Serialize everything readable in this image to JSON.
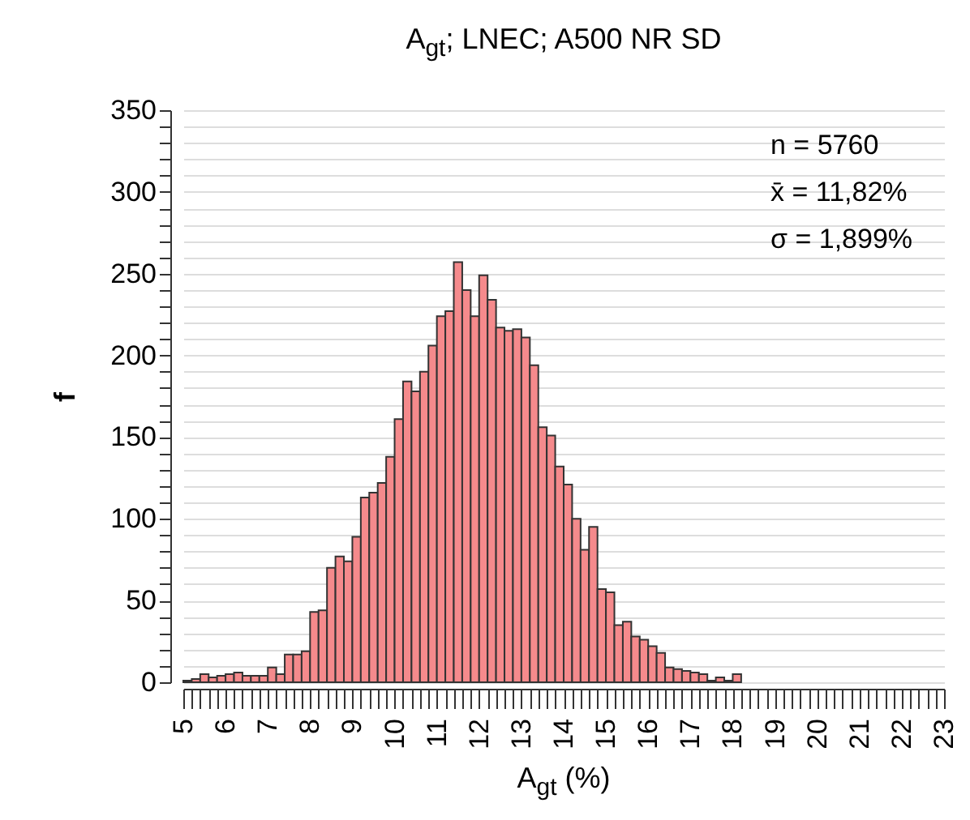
{
  "chart_data": {
    "type": "histogram",
    "title": "A$_{gt}$; LNEC; A500 NR SD",
    "xlabel": "A$_{gt}$ (%)",
    "ylabel": "f",
    "annotations": [
      "n = 5760",
      "x̄ = 11,82%",
      "σ = 1,899%"
    ],
    "color": "#f58a8c",
    "bins": [
      5.0,
      5.2,
      5.4,
      5.6,
      5.8,
      6.0,
      6.2,
      6.4,
      6.6,
      6.8,
      7.0,
      7.2,
      7.4,
      7.6,
      7.8,
      8.0,
      8.2,
      8.4,
      8.6,
      8.8,
      9.0,
      9.2,
      9.4,
      9.6,
      9.8,
      10.0,
      10.2,
      10.4,
      10.6,
      10.8,
      11.0,
      11.2,
      11.4,
      11.6,
      11.8,
      12.0,
      12.2,
      12.4,
      12.6,
      12.8,
      13.0,
      13.2,
      13.4,
      13.6,
      13.8,
      14.0,
      14.2,
      14.4,
      14.6,
      14.8,
      15.0,
      15.2,
      15.4,
      15.6,
      15.8,
      16.0,
      16.2,
      16.4,
      16.6,
      16.8,
      17.0,
      17.2,
      17.4,
      17.6,
      17.8,
      18.0,
      18.2
    ],
    "values": [
      1,
      2,
      5,
      3,
      4,
      5,
      6,
      4,
      4,
      4,
      9,
      5,
      17,
      17,
      19,
      43,
      44,
      70,
      77,
      74,
      89,
      113,
      116,
      122,
      138,
      161,
      184,
      178,
      190,
      206,
      224,
      227,
      257,
      240,
      224,
      249,
      234,
      217,
      215,
      216,
      211,
      194,
      156,
      151,
      132,
      121,
      100,
      81,
      95,
      57,
      55,
      35,
      37,
      28,
      26,
      22,
      18,
      9,
      8,
      7,
      6,
      5,
      1,
      3,
      1,
      5
    ],
    "xlim": [
      5,
      23
    ],
    "ylim": [
      0,
      350
    ],
    "xticks": [
      5,
      {
        "value": 5.2,
        "label": null
      },
      {
        "value": 5.4,
        "label": null
      },
      {
        "value": 5.6,
        "label": null
      },
      {
        "value": 5.8,
        "label": null
      },
      6,
      {
        "value": 6.2,
        "label": null
      },
      {
        "value": 6.4,
        "label": null
      },
      {
        "value": 6.6,
        "label": null
      },
      {
        "value": 6.8,
        "label": null
      },
      7,
      {
        "value": 7.2,
        "label": null
      },
      {
        "value": 7.4,
        "label": null
      },
      {
        "value": 7.6,
        "label": null
      },
      {
        "value": 7.8,
        "label": null
      },
      8,
      {
        "value": 8.2,
        "label": null
      },
      {
        "value": 8.4,
        "label": null
      },
      {
        "value": 8.6,
        "label": null
      },
      {
        "value": 8.8,
        "label": null
      },
      9,
      {
        "value": 9.2,
        "label": null
      },
      {
        "value": 9.4,
        "label": null
      },
      {
        "value": 9.6,
        "label": null
      },
      {
        "value": 9.8,
        "label": null
      },
      10,
      {
        "value": 10.2,
        "label": null
      },
      {
        "value": 10.4,
        "label": null
      },
      {
        "value": 10.6,
        "label": null
      },
      {
        "value": 10.8,
        "label": null
      },
      11,
      {
        "value": 11.2,
        "label": null
      },
      {
        "value": 11.4,
        "label": null
      },
      {
        "value": 11.6,
        "label": null
      },
      {
        "value": 11.8,
        "label": null
      },
      12,
      {
        "value": 12.2,
        "label": null
      },
      {
        "value": 12.4,
        "label": null
      },
      {
        "value": 12.6,
        "label": null
      },
      {
        "value": 12.8,
        "label": null
      },
      13,
      {
        "value": 13.2,
        "label": null
      },
      {
        "value": 13.4,
        "label": null
      },
      {
        "value": 13.6,
        "label": null
      },
      {
        "value": 13.8,
        "label": null
      },
      14,
      {
        "value": 14.2,
        "label": null
      },
      {
        "value": 14.4,
        "label": null
      },
      {
        "value": 14.6,
        "label": null
      },
      {
        "value": 14.8,
        "label": null
      },
      15,
      {
        "value": 15.2,
        "label": null
      },
      {
        "value": 15.4,
        "label": null
      },
      {
        "value": 15.6,
        "label": null
      },
      {
        "value": 15.8,
        "label": null
      },
      16,
      {
        "value": 16.2,
        "label": null
      },
      {
        "value": 16.4,
        "label": null
      },
      {
        "value": 16.6,
        "label": null
      },
      {
        "value": 16.8,
        "label": null
      },
      17,
      {
        "value": 17.2,
        "label": null
      },
      {
        "value": 17.4,
        "label": null
      },
      {
        "value": 17.6,
        "label": null
      },
      {
        "value": 17.8,
        "label": null
      },
      18,
      {
        "value": 18.2,
        "label": null
      },
      {
        "value": 18.4,
        "label": null
      },
      {
        "value": 18.6,
        "label": null
      },
      {
        "value": 18.8,
        "label": null
      },
      19,
      {
        "value": 19.2,
        "label": null
      },
      {
        "value": 19.4,
        "label": null
      },
      {
        "value": 19.6,
        "label": null
      },
      {
        "value": 19.8,
        "label": null
      },
      20,
      {
        "value": 20.2,
        "label": null
      },
      {
        "value": 20.4,
        "label": null
      },
      {
        "value": 20.6,
        "label": null
      },
      {
        "value": 20.8,
        "label": null
      },
      21,
      {
        "value": 21.2,
        "label": null
      },
      {
        "value": 21.4,
        "label": null
      },
      {
        "value": 21.6,
        "label": null
      },
      {
        "value": 21.8,
        "label": null
      },
      22,
      {
        "value": 22.2,
        "label": null
      },
      {
        "value": 22.4,
        "label": null
      },
      {
        "value": 22.6,
        "label": null
      },
      {
        "value": 22.8,
        "label": null
      },
      23
    ],
    "yticks": [
      0,
      {
        "value": 10,
        "label": null
      },
      {
        "value": 20,
        "label": null
      },
      {
        "value": 30,
        "label": null
      },
      {
        "value": 40,
        "label": null
      },
      50,
      {
        "value": 60,
        "label": null
      },
      {
        "value": 70,
        "label": null
      },
      {
        "value": 80,
        "label": null
      },
      {
        "value": 90,
        "label": null
      },
      100,
      {
        "value": 110,
        "label": null
      },
      {
        "value": 120,
        "label": null
      },
      {
        "value": 130,
        "label": null
      },
      {
        "value": 140,
        "label": null
      },
      150,
      {
        "value": 160,
        "label": null
      },
      {
        "value": 170,
        "label": null
      },
      {
        "value": 180,
        "label": null
      },
      {
        "value": 190,
        "label": null
      },
      200,
      {
        "value": 210,
        "label": null
      },
      {
        "value": 220,
        "label": null
      },
      {
        "value": 230,
        "label": null
      },
      {
        "value": 240,
        "label": null
      },
      250,
      {
        "value": 260,
        "label": null
      },
      {
        "value": 270,
        "label": null
      },
      {
        "value": 280,
        "label": null
      },
      {
        "value": 290,
        "label": null
      },
      300,
      {
        "value": 310,
        "label": null
      },
      {
        "value": 320,
        "label": null
      },
      {
        "value": 330,
        "label": null
      },
      {
        "value": 340,
        "label": null
      },
      350
    ],
    "grid": "y"
  }
}
